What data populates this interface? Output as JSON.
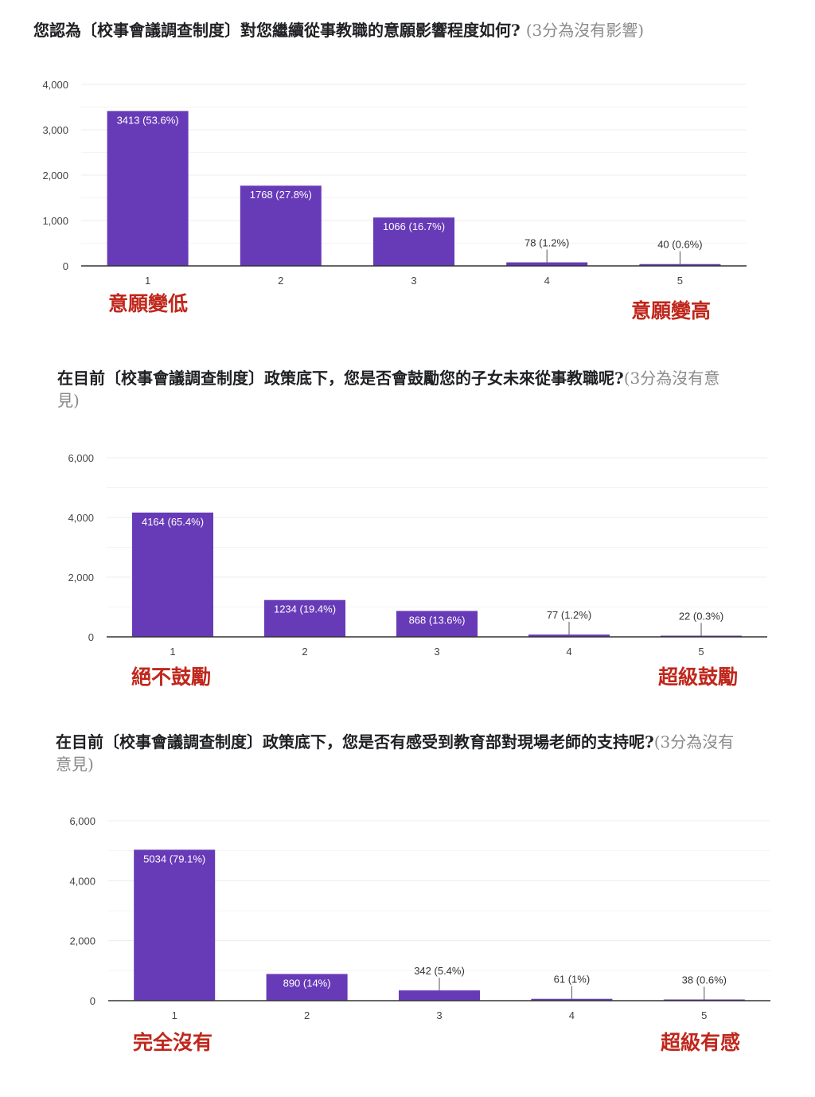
{
  "colors": {
    "bar": "#673ab7",
    "annotation": "#c0271c",
    "note": "#8a8a8a"
  },
  "chart_data": [
    {
      "type": "bar",
      "title": "您認為〔校事會議調查制度〕對您繼續從事教職的意願影響程度如何?",
      "note": "(3分為沒有影響)",
      "categories": [
        "1",
        "2",
        "3",
        "4",
        "5"
      ],
      "values": [
        3413,
        1768,
        1066,
        78,
        40
      ],
      "data_labels": [
        "3413 (53.6%)",
        "1768 (27.8%)",
        "1066 (16.7%)",
        "78 (1.2%)",
        "40 (0.6%)"
      ],
      "ylim": [
        0,
        4000
      ],
      "yticks": [
        0,
        1000,
        2000,
        3000,
        4000
      ],
      "ytick_labels": [
        "0",
        "1,000",
        "2,000",
        "3,000",
        "4,000"
      ],
      "annotations": {
        "low": "意願變低",
        "high": "意願變高"
      }
    },
    {
      "type": "bar",
      "title": "在目前〔校事會議調查制度〕政策底下，您是否會鼓勵您的子女未來從事教職呢?",
      "note": "(3分為沒有意見)",
      "categories": [
        "1",
        "2",
        "3",
        "4",
        "5"
      ],
      "values": [
        4164,
        1234,
        868,
        77,
        22
      ],
      "data_labels": [
        "4164 (65.4%)",
        "1234 (19.4%)",
        "868 (13.6%)",
        "77 (1.2%)",
        "22 (0.3%)"
      ],
      "ylim": [
        0,
        6000
      ],
      "yticks": [
        0,
        2000,
        4000,
        6000
      ],
      "ytick_labels": [
        "0",
        "2,000",
        "4,000",
        "6,000"
      ],
      "annotations": {
        "low": "絕不鼓勵",
        "high": "超級鼓勵"
      }
    },
    {
      "type": "bar",
      "title": "在目前〔校事會議調查制度〕政策底下，您是否有感受到教育部對現場老師的支持呢?",
      "note": "(3分為沒有意見)",
      "categories": [
        "1",
        "2",
        "3",
        "4",
        "5"
      ],
      "values": [
        5034,
        890,
        342,
        61,
        38
      ],
      "data_labels": [
        "5034 (79.1%)",
        "890 (14%)",
        "342 (5.4%)",
        "61 (1%)",
        "38 (0.6%)"
      ],
      "ylim": [
        0,
        6000
      ],
      "yticks": [
        0,
        2000,
        4000,
        6000
      ],
      "ytick_labels": [
        "0",
        "2,000",
        "4,000",
        "6,000"
      ],
      "annotations": {
        "low": "完全沒有",
        "high": "超級有感"
      }
    }
  ]
}
